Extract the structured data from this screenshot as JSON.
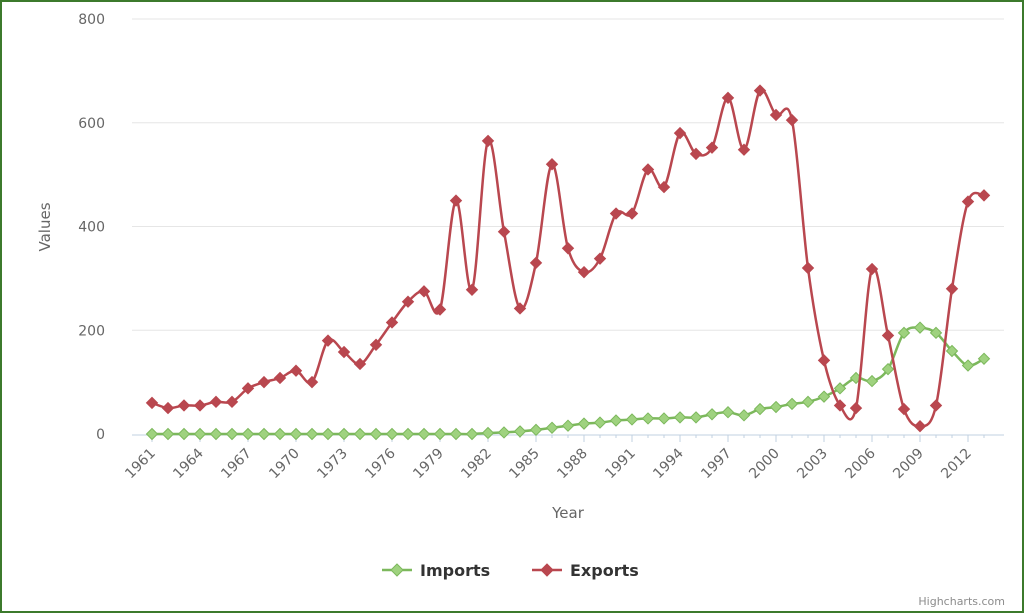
{
  "chart_data": {
    "type": "line",
    "xlabel": "Year",
    "ylabel": "Values",
    "ylim": [
      0,
      800
    ],
    "yticks": [
      0,
      200,
      400,
      600,
      800
    ],
    "x": [
      1961,
      1962,
      1963,
      1964,
      1965,
      1966,
      1967,
      1968,
      1969,
      1970,
      1971,
      1972,
      1973,
      1974,
      1975,
      1976,
      1977,
      1978,
      1979,
      1980,
      1981,
      1982,
      1983,
      1984,
      1985,
      1986,
      1987,
      1988,
      1989,
      1990,
      1991,
      1992,
      1993,
      1994,
      1995,
      1996,
      1997,
      1998,
      1999,
      2000,
      2001,
      2002,
      2003,
      2004,
      2005,
      2006,
      2007,
      2008,
      2009,
      2010,
      2011,
      2012,
      2013
    ],
    "xtick_labels": [
      "1961",
      "1964",
      "1967",
      "1970",
      "1973",
      "1976",
      "1979",
      "1982",
      "1985",
      "1988",
      "1991",
      "1994",
      "1997",
      "2000",
      "2003",
      "2006",
      "2009",
      "2012"
    ],
    "grid": true,
    "legend_position": "bottom-center",
    "series": [
      {
        "name": "Imports",
        "color": "#7cb85c",
        "marker": "diamond",
        "values": [
          0,
          0,
          0,
          0,
          0,
          0,
          0,
          0,
          0,
          0,
          0,
          0,
          0,
          0,
          0,
          0,
          0,
          0,
          0,
          0,
          0,
          2,
          3,
          5,
          8,
          12,
          16,
          20,
          22,
          26,
          28,
          30,
          30,
          32,
          32,
          38,
          42,
          36,
          48,
          52,
          58,
          62,
          72,
          88,
          108,
          102,
          125,
          195,
          205,
          195,
          160,
          132,
          145
        ]
      },
      {
        "name": "Exports",
        "color": "#b9474f",
        "marker": "diamond",
        "values": [
          60,
          50,
          55,
          55,
          62,
          62,
          88,
          100,
          108,
          122,
          100,
          180,
          158,
          135,
          172,
          215,
          255,
          275,
          240,
          450,
          278,
          565,
          390,
          242,
          330,
          520,
          358,
          312,
          338,
          425,
          425,
          510,
          476,
          580,
          540,
          552,
          648,
          548,
          662,
          615,
          605,
          320,
          142,
          55,
          50,
          318,
          190,
          48,
          15,
          55,
          280,
          448,
          460
        ]
      }
    ],
    "credits": "Highcharts.com"
  }
}
